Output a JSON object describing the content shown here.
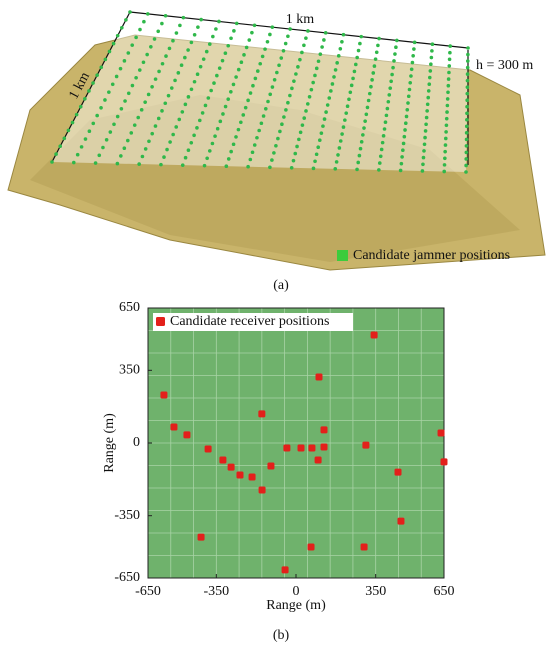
{
  "panel_a": {
    "width_label": "1 km",
    "depth_label": "1 km",
    "height_label": "h = 300 m",
    "legend": "Candidate jammer positions",
    "caption": "(a)"
  },
  "chart_data": {
    "type": "scatter",
    "caption": "(b)",
    "x_label": "Range (m)",
    "y_label": "Range (m)",
    "xlim": [
      -650,
      650
    ],
    "ylim": [
      -650,
      650
    ],
    "xticks": [
      -650,
      -350,
      0,
      350,
      650
    ],
    "yticks": [
      -650,
      -350,
      0,
      350,
      650
    ],
    "series": [
      {
        "name": "Candidate receiver positions",
        "color": "#e3201b",
        "x": [
          343,
          101,
          -580,
          -536,
          -479,
          -386,
          -321,
          -285,
          -246,
          -150,
          -149,
          -110,
          -193,
          -40,
          22,
          70,
          123,
          123,
          97,
          307,
          637,
          650,
          448,
          461,
          -417,
          66,
          299,
          -48
        ],
        "values": [
          520,
          318,
          231,
          77,
          39,
          -29,
          -82,
          -116,
          -154,
          140,
          -226,
          -111,
          -164,
          -24,
          -24,
          -24,
          -19,
          63,
          -82,
          -10,
          48,
          -91,
          -140,
          -376,
          -453,
          -501,
          -501,
          -611
        ]
      }
    ]
  }
}
